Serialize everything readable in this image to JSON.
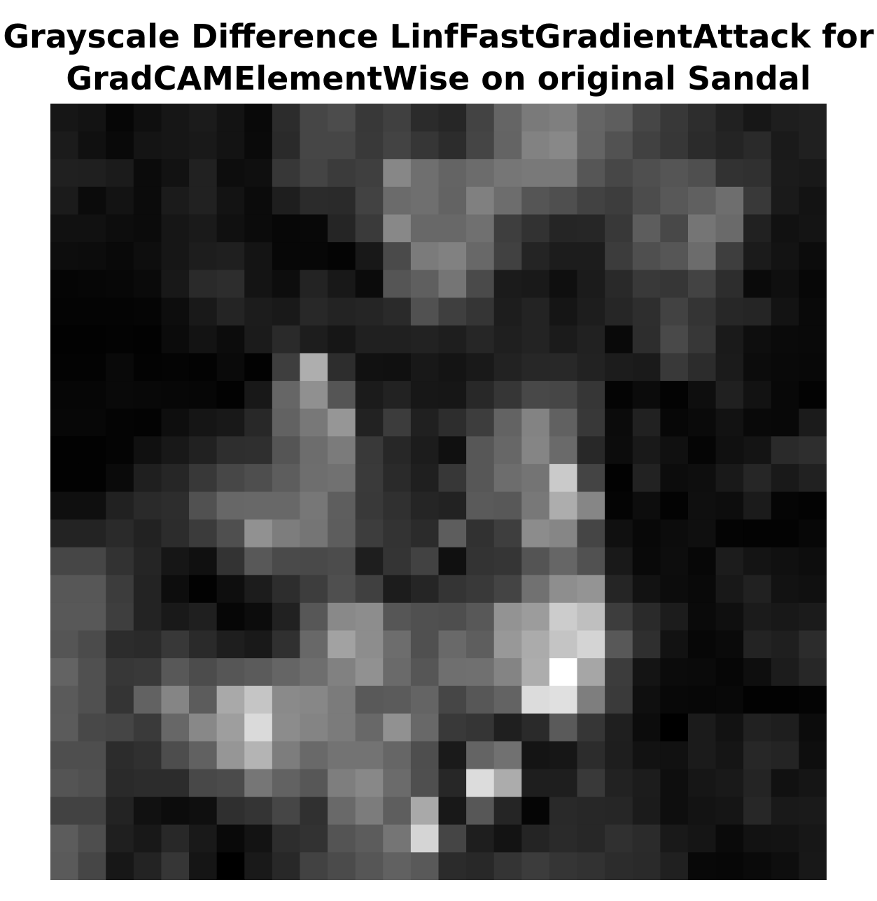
{
  "chart_data": {
    "type": "heatmap",
    "title_line1": "Grayscale Difference LinfFastGradientAttack for",
    "title_line2": "GradCAMElementWise on original Sandal",
    "colormap": "gray",
    "axes_visible": false,
    "rows": 28,
    "cols": 28,
    "values": [
      [
        22,
        19,
        6,
        15,
        22,
        27,
        19,
        9,
        44,
        70,
        76,
        56,
        64,
        43,
        38,
        67,
        101,
        122,
        127,
        101,
        94,
        70,
        56,
        45,
        33,
        23,
        30,
        32
      ],
      [
        27,
        16,
        9,
        20,
        22,
        25,
        19,
        10,
        42,
        70,
        70,
        57,
        67,
        54,
        44,
        69,
        100,
        130,
        136,
        100,
        82,
        65,
        55,
        43,
        36,
        42,
        26,
        32
      ],
      [
        32,
        31,
        27,
        11,
        18,
        33,
        13,
        15,
        55,
        68,
        59,
        63,
        135,
        111,
        100,
        108,
        118,
        121,
        121,
        86,
        71,
        79,
        85,
        79,
        50,
        48,
        27,
        25
      ],
      [
        27,
        11,
        19,
        11,
        27,
        33,
        19,
        11,
        30,
        43,
        42,
        66,
        107,
        111,
        99,
        128,
        109,
        85,
        79,
        66,
        61,
        76,
        88,
        96,
        110,
        57,
        26,
        19
      ],
      [
        17,
        17,
        13,
        11,
        22,
        26,
        16,
        11,
        7,
        8,
        37,
        58,
        136,
        104,
        104,
        112,
        62,
        50,
        37,
        38,
        56,
        93,
        72,
        117,
        106,
        33,
        17,
        20
      ],
      [
        13,
        12,
        9,
        14,
        22,
        29,
        31,
        20,
        7,
        7,
        4,
        24,
        74,
        123,
        129,
        104,
        65,
        36,
        28,
        28,
        60,
        79,
        86,
        108,
        62,
        27,
        19,
        12
      ],
      [
        5,
        6,
        7,
        10,
        24,
        42,
        45,
        20,
        13,
        35,
        24,
        11,
        85,
        95,
        117,
        74,
        27,
        25,
        15,
        27,
        41,
        57,
        54,
        67,
        45,
        10,
        15,
        7
      ],
      [
        4,
        4,
        4,
        5,
        13,
        25,
        36,
        28,
        25,
        40,
        35,
        37,
        42,
        81,
        63,
        53,
        29,
        35,
        21,
        29,
        38,
        46,
        66,
        52,
        39,
        37,
        19,
        9
      ],
      [
        2,
        2,
        3,
        2,
        11,
        19,
        12,
        27,
        42,
        29,
        22,
        32,
        32,
        34,
        30,
        38,
        31,
        35,
        27,
        33,
        9,
        45,
        73,
        55,
        26,
        14,
        10,
        9
      ],
      [
        3,
        3,
        9,
        3,
        4,
        3,
        10,
        2,
        62,
        174,
        45,
        17,
        16,
        24,
        20,
        25,
        34,
        39,
        40,
        34,
        28,
        26,
        57,
        44,
        27,
        12,
        9,
        8
      ],
      [
        6,
        6,
        9,
        8,
        7,
        6,
        2,
        24,
        102,
        144,
        85,
        27,
        34,
        23,
        22,
        40,
        54,
        72,
        70,
        54,
        4,
        11,
        3,
        14,
        32,
        18,
        8,
        3
      ],
      [
        7,
        7,
        4,
        3,
        14,
        21,
        24,
        40,
        98,
        120,
        150,
        34,
        60,
        32,
        45,
        61,
        99,
        131,
        97,
        56,
        11,
        33,
        7,
        10,
        18,
        9,
        8,
        27
      ],
      [
        2,
        2,
        4,
        16,
        24,
        33,
        46,
        47,
        85,
        109,
        123,
        57,
        39,
        28,
        16,
        87,
        103,
        133,
        106,
        40,
        12,
        25,
        16,
        5,
        16,
        20,
        42,
        46
      ],
      [
        2,
        2,
        10,
        31,
        38,
        56,
        71,
        78,
        93,
        110,
        113,
        58,
        42,
        31,
        55,
        87,
        109,
        116,
        202,
        68,
        2,
        34,
        12,
        14,
        25,
        38,
        25,
        33
      ],
      [
        15,
        15,
        33,
        42,
        45,
        81,
        103,
        104,
        104,
        119,
        94,
        57,
        48,
        37,
        34,
        90,
        88,
        120,
        173,
        134,
        4,
        13,
        3,
        15,
        13,
        27,
        5,
        3
      ],
      [
        35,
        35,
        42,
        34,
        44,
        59,
        79,
        145,
        125,
        117,
        93,
        61,
        51,
        43,
        93,
        49,
        62,
        140,
        134,
        69,
        16,
        8,
        12,
        15,
        4,
        3,
        3,
        7
      ],
      [
        70,
        70,
        50,
        37,
        22,
        16,
        51,
        88,
        74,
        73,
        76,
        30,
        52,
        66,
        16,
        51,
        53,
        84,
        102,
        81,
        25,
        9,
        13,
        7,
        28,
        20,
        16,
        13
      ],
      [
        87,
        87,
        60,
        35,
        13,
        2,
        14,
        28,
        45,
        61,
        79,
        64,
        28,
        37,
        52,
        57,
        68,
        113,
        142,
        148,
        37,
        18,
        12,
        9,
        24,
        33,
        18,
        16
      ],
      [
        88,
        88,
        62,
        35,
        25,
        31,
        6,
        12,
        33,
        87,
        137,
        141,
        86,
        80,
        78,
        88,
        147,
        156,
        204,
        191,
        61,
        42,
        28,
        10,
        15,
        27,
        24,
        27
      ],
      [
        85,
        75,
        44,
        42,
        56,
        42,
        30,
        25,
        48,
        104,
        162,
        141,
        109,
        80,
        105,
        94,
        152,
        171,
        196,
        212,
        88,
        47,
        18,
        7,
        10,
        35,
        31,
        44
      ],
      [
        99,
        80,
        55,
        57,
        88,
        76,
        86,
        91,
        101,
        110,
        129,
        145,
        106,
        86,
        111,
        112,
        132,
        173,
        255,
        166,
        60,
        20,
        11,
        10,
        6,
        14,
        28,
        39
      ],
      [
        90,
        80,
        52,
        98,
        133,
        92,
        169,
        197,
        138,
        135,
        123,
        89,
        91,
        100,
        70,
        87,
        99,
        220,
        224,
        126,
        58,
        15,
        8,
        7,
        8,
        2,
        2,
        4
      ],
      [
        91,
        72,
        69,
        58,
        103,
        136,
        158,
        218,
        140,
        132,
        123,
        104,
        145,
        104,
        57,
        53,
        31,
        42,
        90,
        54,
        31,
        12,
        0,
        27,
        18,
        33,
        30,
        12
      ],
      [
        78,
        78,
        44,
        48,
        77,
        97,
        150,
        180,
        125,
        105,
        115,
        115,
        102,
        78,
        26,
        100,
        113,
        20,
        22,
        44,
        30,
        18,
        17,
        27,
        21,
        39,
        36,
        14
      ],
      [
        84,
        80,
        42,
        44,
        44,
        72,
        75,
        118,
        98,
        87,
        126,
        136,
        107,
        79,
        39,
        220,
        172,
        30,
        30,
        57,
        34,
        28,
        14,
        22,
        25,
        36,
        17,
        21
      ],
      [
        66,
        66,
        35,
        17,
        12,
        15,
        47,
        52,
        70,
        48,
        105,
        124,
        94,
        169,
        24,
        87,
        37,
        5,
        41,
        39,
        38,
        27,
        14,
        19,
        21,
        39,
        25,
        26
      ],
      [
        92,
        78,
        31,
        24,
        40,
        25,
        9,
        19,
        45,
        50,
        84,
        92,
        117,
        213,
        69,
        30,
        19,
        36,
        42,
        39,
        48,
        43,
        25,
        21,
        10,
        18,
        19,
        23
      ],
      [
        90,
        70,
        23,
        35,
        54,
        21,
        0,
        25,
        40,
        66,
        75,
        86,
        97,
        89,
        43,
        40,
        52,
        60,
        53,
        50,
        44,
        42,
        32,
        8,
        7,
        10,
        14,
        24
      ]
    ]
  }
}
